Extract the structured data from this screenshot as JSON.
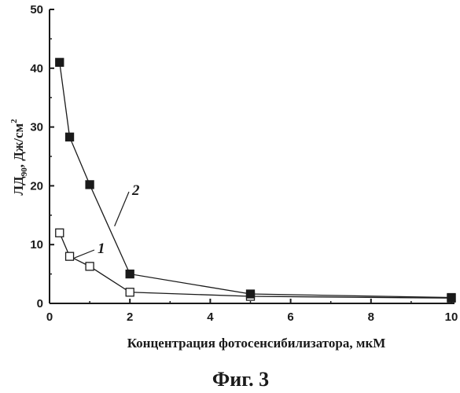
{
  "chart_data": {
    "type": "line",
    "xlabel": "Концентрация фотосенсибилизатора, мкМ",
    "ylabel_parts": {
      "main": "ЛД",
      "sub": "90",
      "unit": ", Дж/см",
      "sup": "2"
    },
    "xlim": [
      0,
      10
    ],
    "ylim": [
      0,
      50
    ],
    "x_ticks": [
      "0",
      "2",
      "4",
      "6",
      "8",
      "10"
    ],
    "y_ticks": [
      "0",
      "10",
      "20",
      "30",
      "40",
      "50"
    ],
    "grid": false,
    "series": [
      {
        "name": "1",
        "marker": "open-square",
        "x": [
          0.25,
          0.5,
          1.0,
          2.0,
          5.0,
          10.0
        ],
        "y": [
          12,
          8,
          6.3,
          1.9,
          1.2,
          0.9
        ]
      },
      {
        "name": "2",
        "marker": "filled-square",
        "x": [
          0.25,
          0.5,
          1.0,
          2.0,
          5.0,
          10.0
        ],
        "y": [
          41,
          28.3,
          20.2,
          5,
          1.6,
          1.0
        ]
      }
    ]
  },
  "caption": "Фиг. 3",
  "colors": {
    "ink": "#1a1a1a",
    "background": "#ffffff"
  }
}
